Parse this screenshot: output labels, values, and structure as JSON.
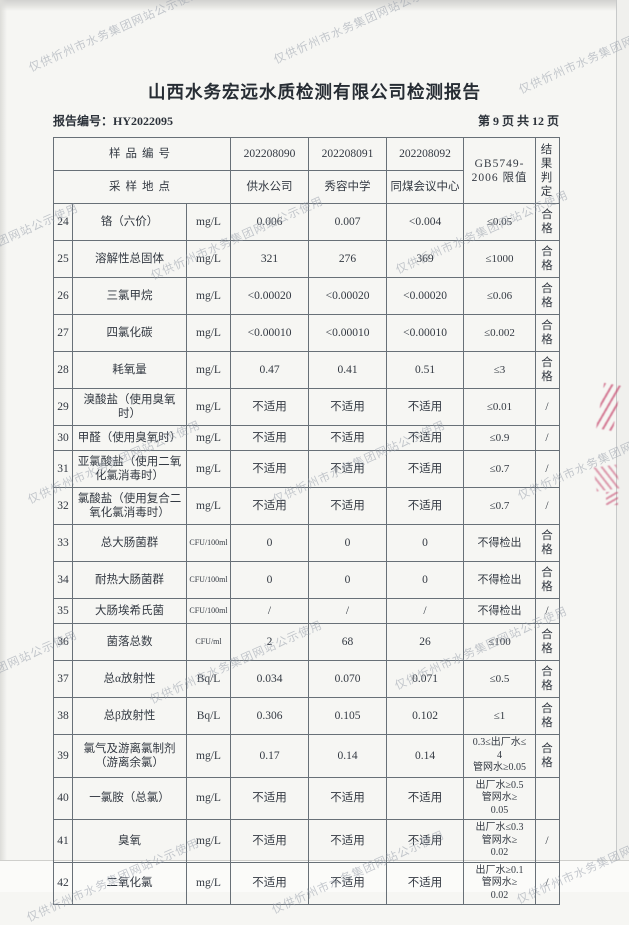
{
  "page": {
    "title": "山西水务宏远水质检测有限公司检测报告",
    "report_no": "报告编号：HY2022095",
    "page_indicator": "第 9 页 共 12 页",
    "watermark": "仅供忻州市水务集团网站公示使用"
  },
  "colors": {
    "ink": "#333942",
    "border": "#687077",
    "paper": "#f6f6f3",
    "watermark": "#99a0ab",
    "stamp": "#c74d72"
  },
  "table": {
    "header": {
      "sample_id_label": "样品编号",
      "sample_site_label": "采样地点",
      "sample_ids": [
        "202208090",
        "202208091",
        "202208092"
      ],
      "sample_sites": [
        "供水公司",
        "秀容中学",
        "同煤会议中心"
      ],
      "limit_header": "GB5749-\n2006 限值",
      "result_header": "结果\n判定"
    },
    "rows": [
      {
        "no": "24",
        "name": "铬（六价）",
        "unit": "mg/L",
        "values": [
          "0.006",
          "0.007",
          "<0.004"
        ],
        "limit": "≤0.05",
        "result": "合格"
      },
      {
        "no": "25",
        "name": "溶解性总固体",
        "unit": "mg/L",
        "values": [
          "321",
          "276",
          "369"
        ],
        "limit": "≤1000",
        "result": "合格"
      },
      {
        "no": "26",
        "name": "三氯甲烷",
        "unit": "mg/L",
        "values": [
          "<0.00020",
          "<0.00020",
          "<0.00020"
        ],
        "limit": "≤0.06",
        "result": "合格"
      },
      {
        "no": "27",
        "name": "四氯化碳",
        "unit": "mg/L",
        "values": [
          "<0.00010",
          "<0.00010",
          "<0.00010"
        ],
        "limit": "≤0.002",
        "result": "合格"
      },
      {
        "no": "28",
        "name": "耗氧量",
        "unit": "mg/L",
        "values": [
          "0.47",
          "0.41",
          "0.51"
        ],
        "limit": "≤3",
        "result": "合格"
      },
      {
        "no": "29",
        "name": "溴酸盐（使用臭氧时）",
        "unit": "mg/L",
        "values": [
          "不适用",
          "不适用",
          "不适用"
        ],
        "limit": "≤0.01",
        "result": "/"
      },
      {
        "no": "30",
        "name": "甲醛（使用臭氧时）",
        "unit": "mg/L",
        "values": [
          "不适用",
          "不适用",
          "不适用"
        ],
        "limit": "≤0.9",
        "result": "/"
      },
      {
        "no": "31",
        "name": "亚氯酸盐（使用二氧化氯消毒时）",
        "unit": "mg/L",
        "values": [
          "不适用",
          "不适用",
          "不适用"
        ],
        "limit": "≤0.7",
        "result": "/"
      },
      {
        "no": "32",
        "name": "氯酸盐（使用复合二氧化氯消毒时）",
        "unit": "mg/L",
        "values": [
          "不适用",
          "不适用",
          "不适用"
        ],
        "limit": "≤0.7",
        "result": "/"
      },
      {
        "no": "33",
        "name": "总大肠菌群",
        "unit": "CFU/100ml",
        "values": [
          "0",
          "0",
          "0"
        ],
        "limit": "不得检出",
        "result": "合格"
      },
      {
        "no": "34",
        "name": "耐热大肠菌群",
        "unit": "CFU/100ml",
        "values": [
          "0",
          "0",
          "0"
        ],
        "limit": "不得检出",
        "result": "合格"
      },
      {
        "no": "35",
        "name": "大肠埃希氏菌",
        "unit": "CFU/100ml",
        "values": [
          "/",
          "/",
          "/"
        ],
        "limit": "不得检出",
        "result": "/"
      },
      {
        "no": "36",
        "name": "菌落总数",
        "unit": "CFU/ml",
        "values": [
          "2",
          "68",
          "26"
        ],
        "limit": "≤100",
        "result": "合格"
      },
      {
        "no": "37",
        "name": "总α放射性",
        "unit": "Bq/L",
        "values": [
          "0.034",
          "0.070",
          "0.071"
        ],
        "limit": "≤0.5",
        "result": "合格"
      },
      {
        "no": "38",
        "name": "总β放射性",
        "unit": "Bq/L",
        "values": [
          "0.306",
          "0.105",
          "0.102"
        ],
        "limit": "≤1",
        "result": "合格"
      },
      {
        "no": "39",
        "name": "氯气及游离氯制剂（游离余氯）",
        "unit": "mg/L",
        "values": [
          "0.17",
          "0.14",
          "0.14"
        ],
        "limit": "0.3≤出厂水≤\n4\n管网水≥0.05",
        "result": "合格"
      },
      {
        "no": "40",
        "name": "一氯胺（总氯）",
        "unit": "mg/L",
        "values": [
          "不适用",
          "不适用",
          "不适用"
        ],
        "limit": "出厂水≥0.5\n管网水≥\n0.05",
        "result": ""
      },
      {
        "no": "41",
        "name": "臭氧",
        "unit": "mg/L",
        "values": [
          "不适用",
          "不适用",
          "不适用"
        ],
        "limit": "出厂水≤0.3\n管网水≥\n0.02",
        "result": "/"
      },
      {
        "no": "42",
        "name": "二氧化氯",
        "unit": "mg/L",
        "values": [
          "不适用",
          "不适用",
          "不适用"
        ],
        "limit": "出厂水≥0.1\n管网水≥\n0.02",
        "result": "/"
      }
    ]
  }
}
